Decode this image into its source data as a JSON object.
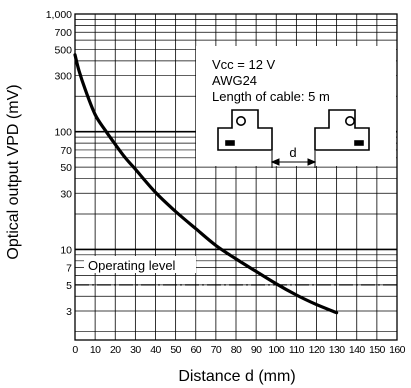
{
  "chart_data": {
    "type": "line",
    "title": "",
    "xlabel": "Distance d (mm)",
    "ylabel": "Optical output VPD (mV)",
    "x_scale": "linear",
    "y_scale": "log",
    "xlim": [
      0,
      160
    ],
    "ylim": [
      1.7,
      1000
    ],
    "x_ticks": [
      0,
      10,
      20,
      30,
      40,
      50,
      60,
      70,
      80,
      90,
      100,
      110,
      120,
      130,
      140,
      150,
      160
    ],
    "x_tick_labels": [
      "0",
      "10",
      "20",
      "30",
      "40",
      "50",
      "60",
      "70",
      "80",
      "90",
      "100",
      "110",
      "120",
      "130",
      "140",
      "150",
      "160"
    ],
    "y_ticks": [
      3,
      5,
      7,
      10,
      30,
      50,
      70,
      100,
      300,
      500,
      700,
      1000
    ],
    "y_tick_labels": [
      "3",
      "5",
      "7",
      "10",
      "30",
      "50",
      "70",
      "100",
      "300",
      "500",
      "700",
      "1,000"
    ],
    "grid": true,
    "series": [
      {
        "x": [
          0,
          2,
          5,
          10,
          15,
          20,
          25,
          30,
          40,
          50,
          60,
          70,
          80,
          90,
          100,
          110,
          120,
          130
        ],
        "y": [
          450,
          330,
          230,
          140,
          103,
          78,
          60,
          48,
          30.5,
          21,
          15,
          10.8,
          8.3,
          6.5,
          5.1,
          4.1,
          3.4,
          2.9
        ]
      }
    ],
    "reference_lines": [
      {
        "label": "Operating level",
        "y": 5,
        "style": "dash-dot"
      }
    ],
    "annotations": {
      "vcc": "Vcc = 12 V",
      "wire": "AWG24",
      "cable": "Length of cable: 5 m",
      "d_label": "d"
    }
  }
}
